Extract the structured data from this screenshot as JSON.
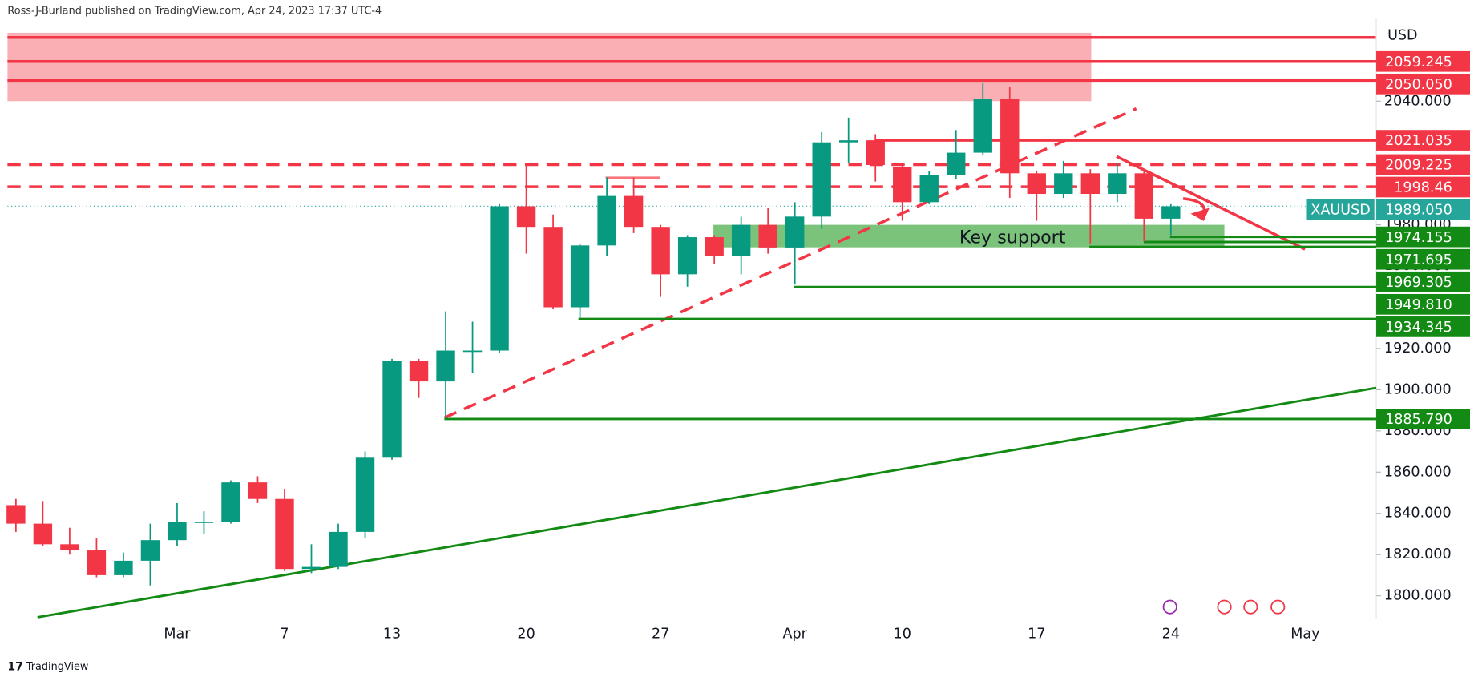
{
  "chart_data": {
    "type": "candlestick",
    "header": "Ross-J-Burland published on TradingView.com, Apr 24, 2023 17:37 UTC-4",
    "currency": "USD",
    "symbol": "XAUUSD",
    "brand": "TradingView",
    "annotation": "Key support",
    "up_color": "#089981",
    "down_color": "#f23645",
    "categories": [
      null,
      null,
      null,
      null,
      null,
      null,
      "Mar",
      null,
      null,
      null,
      "7",
      null,
      null,
      null,
      "13",
      null,
      null,
      null,
      null,
      "20",
      null,
      null,
      null,
      null,
      "27",
      null,
      null,
      null,
      null,
      "Apr",
      null,
      null,
      null,
      "10",
      null,
      null,
      null,
      null,
      "17",
      null,
      null,
      null,
      null,
      "24",
      null,
      null,
      null,
      null,
      "May"
    ],
    "open": [
      1844,
      1835,
      1825,
      1822,
      1810,
      1817,
      1827,
      1836,
      1836,
      1855,
      1847,
      1813,
      1814,
      1831,
      1867,
      1914,
      1904,
      1919,
      1919,
      1989,
      1979,
      1940,
      1970,
      1994,
      1979,
      1956,
      1974,
      1965,
      1980,
      1969,
      1984,
      2020,
      2021,
      2008,
      1991,
      2004,
      2015,
      2041,
      2005,
      1995,
      2005,
      1995,
      2005,
      1983,
      null,
      null,
      null,
      null,
      null
    ],
    "high": [
      1847,
      1846,
      1833,
      1828,
      1821,
      1835,
      1845,
      1841,
      1856,
      1858,
      1852,
      1825,
      1835,
      1870,
      1915,
      1915,
      1938,
      1933,
      1990,
      2010,
      1985,
      1971,
      2003,
      2003,
      1980,
      1975,
      1975,
      1984,
      1988,
      1991,
      2025,
      2032,
      2024,
      2009,
      2006,
      2026,
      2049,
      2047,
      2006,
      2011,
      2007,
      2010,
      2006,
      1990,
      null,
      null,
      null,
      null,
      null
    ],
    "low": [
      1831,
      1824,
      1820,
      1809,
      1809,
      1805,
      1824,
      1830,
      1835,
      1845,
      1812,
      1811,
      1813,
      1828,
      1866,
      1896,
      1886,
      1908,
      1918,
      1966,
      1939,
      1935,
      1965,
      1976,
      1945,
      1950,
      1961,
      1956,
      1966,
      1951,
      1978,
      2010,
      2001,
      1982,
      1990,
      2002,
      2014,
      1993,
      1982,
      1993,
      1971,
      1991,
      1972,
      1975,
      null,
      null,
      null,
      null,
      null
    ],
    "close": [
      1835,
      1825,
      1822,
      1810,
      1817,
      1827,
      1836,
      1836,
      1855,
      1847,
      1813,
      1814,
      1831,
      1867,
      1914,
      1904,
      1919,
      1919,
      1989,
      1979,
      1940,
      1970,
      1994,
      1979,
      1956,
      1974,
      1965,
      1980,
      1969,
      1984,
      2020,
      2021,
      2009,
      1991,
      2004,
      2015,
      2041,
      2005,
      1995,
      2005,
      1995,
      2005,
      1983,
      1989,
      null,
      null,
      null,
      null,
      null
    ],
    "ylim": [
      1789.1,
      2080
    ],
    "yticks": [
      {
        "value": 1800,
        "label": "1800.000"
      },
      {
        "value": 1820,
        "label": "1820.000"
      },
      {
        "value": 1840,
        "label": "1840.000"
      },
      {
        "value": 1860,
        "label": "1860.000"
      },
      {
        "value": 1880,
        "label": "1880.000"
      },
      {
        "value": 1900,
        "label": "1900.000"
      },
      {
        "value": 1920,
        "label": "1920.000"
      },
      {
        "value": 1940,
        "label": "1940.000"
      },
      {
        "value": 1960,
        "label": "1960.000"
      },
      {
        "value": 1980,
        "label": "1980.000"
      },
      {
        "value": 2000,
        "label": "2000.000"
      },
      {
        "value": 2020,
        "label": "2020.000"
      },
      {
        "value": 2040,
        "label": "2040.000"
      }
    ],
    "last_price": {
      "value": 1989.05,
      "label": "1989.050"
    },
    "last_price_color": "#26a69a",
    "levels": [
      {
        "price": 2059.245,
        "color": "#f23645",
        "style": "solid"
      },
      {
        "price": {
          "value": 2050.05,
          "label": "2050.050"
        },
        "color": "#f23645",
        "style": "solid"
      },
      {
        "price": 2021.035,
        "color": "#f23645",
        "style": "solid"
      },
      {
        "price": 2009.225,
        "color": "#f23645",
        "style": "dashed"
      },
      {
        "price": 1998.46,
        "color": "#f23645",
        "style": "dashed"
      },
      {
        "price": 1974.155,
        "color": "#138a13",
        "style": "solid"
      },
      {
        "price": 1971.695,
        "color": "#138a13",
        "style": "solid"
      },
      {
        "price": 1969.305,
        "color": "#138a13",
        "style": "solid"
      },
      {
        "price": {
          "value": 1949.81,
          "label": "1949.810"
        },
        "color": "#138a13",
        "style": "solid"
      },
      {
        "price": 1934.345,
        "color": "#138a13",
        "style": "solid"
      },
      {
        "price": {
          "value": 1885.79,
          "label": "1885.790"
        },
        "color": "#138a13",
        "style": "solid"
      }
    ]
  }
}
